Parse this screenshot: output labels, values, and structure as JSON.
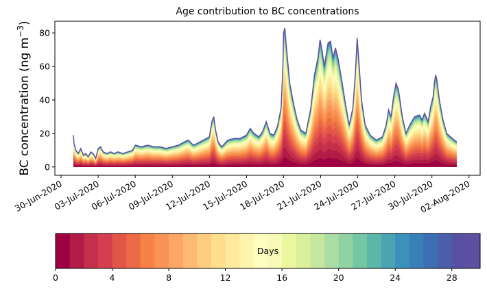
{
  "chart_data": {
    "type": "area",
    "title": "Age contribution to BC concentrations",
    "ylabel": "BC concentration (ng m⁻³)",
    "ylabel_text": "BC concentration (ng m",
    "ylabel_exp": "−3",
    "ylabel_close": ")",
    "xlim_days": [
      -0.5,
      33.9
    ],
    "ylim": [
      -5,
      87
    ],
    "yticks": [
      0,
      20,
      40,
      60,
      80
    ],
    "xticks": [
      {
        "day": 0,
        "label": "30-Jun-2020"
      },
      {
        "day": 3,
        "label": "03-Jul-2020"
      },
      {
        "day": 6,
        "label": "06-Jul-2020"
      },
      {
        "day": 9,
        "label": "09-Jul-2020"
      },
      {
        "day": 12,
        "label": "12-Jul-2020"
      },
      {
        "day": 15,
        "label": "15-Jul-2020"
      },
      {
        "day": 18,
        "label": "18-Jul-2020"
      },
      {
        "day": 21,
        "label": "21-Jul-2020"
      },
      {
        "day": 24,
        "label": "24-Jul-2020"
      },
      {
        "day": 27,
        "label": "27-Jul-2020"
      },
      {
        "day": 30,
        "label": "30-Jul-2020"
      },
      {
        "day": 33,
        "label": "02-Aug-2020"
      }
    ],
    "series_note": "Stacked contributions by particle age, 0–30 days (30 bands).",
    "total_profile": [
      [
        1.0,
        19
      ],
      [
        1.05,
        14
      ],
      [
        1.2,
        10
      ],
      [
        1.4,
        8
      ],
      [
        1.6,
        11
      ],
      [
        1.8,
        7
      ],
      [
        2.0,
        8
      ],
      [
        2.2,
        6
      ],
      [
        2.4,
        9
      ],
      [
        2.6,
        8
      ],
      [
        2.8,
        5
      ],
      [
        3.0,
        11
      ],
      [
        3.2,
        12
      ],
      [
        3.4,
        9
      ],
      [
        3.7,
        8
      ],
      [
        4.0,
        9
      ],
      [
        4.3,
        8
      ],
      [
        4.6,
        9
      ],
      [
        5.0,
        8
      ],
      [
        5.4,
        9
      ],
      [
        5.8,
        10
      ],
      [
        6.0,
        13
      ],
      [
        6.5,
        12
      ],
      [
        7.0,
        13
      ],
      [
        7.5,
        12
      ],
      [
        8.0,
        12
      ],
      [
        8.5,
        11
      ],
      [
        9.0,
        12
      ],
      [
        9.5,
        13
      ],
      [
        10.0,
        15
      ],
      [
        10.3,
        16
      ],
      [
        10.7,
        13
      ],
      [
        11.0,
        14
      ],
      [
        11.5,
        16
      ],
      [
        12.0,
        18
      ],
      [
        12.2,
        27
      ],
      [
        12.35,
        30
      ],
      [
        12.5,
        22
      ],
      [
        12.7,
        15
      ],
      [
        13.0,
        12
      ],
      [
        13.5,
        16
      ],
      [
        14.0,
        17
      ],
      [
        14.5,
        17
      ],
      [
        15.0,
        19
      ],
      [
        15.3,
        23
      ],
      [
        15.6,
        20
      ],
      [
        16.0,
        18
      ],
      [
        16.3,
        21
      ],
      [
        16.6,
        27
      ],
      [
        16.9,
        20
      ],
      [
        17.2,
        19
      ],
      [
        17.5,
        24
      ],
      [
        17.8,
        35
      ],
      [
        17.95,
        60
      ],
      [
        18.0,
        80
      ],
      [
        18.1,
        83
      ],
      [
        18.25,
        70
      ],
      [
        18.5,
        50
      ],
      [
        18.8,
        38
      ],
      [
        19.1,
        28
      ],
      [
        19.4,
        22
      ],
      [
        19.8,
        20
      ],
      [
        20.2,
        35
      ],
      [
        20.5,
        55
      ],
      [
        20.8,
        66
      ],
      [
        20.95,
        76
      ],
      [
        21.1,
        70
      ],
      [
        21.3,
        60
      ],
      [
        21.6,
        74
      ],
      [
        21.8,
        75
      ],
      [
        22.0,
        65
      ],
      [
        22.2,
        71
      ],
      [
        22.4,
        65
      ],
      [
        22.7,
        52
      ],
      [
        23.0,
        38
      ],
      [
        23.3,
        25
      ],
      [
        23.6,
        35
      ],
      [
        23.8,
        55
      ],
      [
        23.95,
        77
      ],
      [
        24.1,
        62
      ],
      [
        24.3,
        40
      ],
      [
        24.6,
        25
      ],
      [
        25.0,
        19
      ],
      [
        25.5,
        16
      ],
      [
        26.0,
        18
      ],
      [
        26.3,
        25
      ],
      [
        26.5,
        34
      ],
      [
        26.7,
        30
      ],
      [
        26.9,
        42
      ],
      [
        27.1,
        50
      ],
      [
        27.3,
        46
      ],
      [
        27.6,
        30
      ],
      [
        27.9,
        20
      ],
      [
        28.2,
        25
      ],
      [
        28.6,
        30
      ],
      [
        29.0,
        31
      ],
      [
        29.2,
        28
      ],
      [
        29.4,
        32
      ],
      [
        29.7,
        27
      ],
      [
        29.9,
        36
      ],
      [
        30.1,
        42
      ],
      [
        30.2,
        50
      ],
      [
        30.3,
        55
      ],
      [
        30.4,
        52
      ],
      [
        30.6,
        40
      ],
      [
        30.9,
        28
      ],
      [
        31.2,
        20
      ],
      [
        31.5,
        18
      ],
      [
        31.8,
        16
      ],
      [
        32.0,
        15
      ]
    ],
    "colorbar": {
      "label": "Days",
      "ticks": [
        0,
        4,
        8,
        12,
        16,
        20,
        24,
        28
      ],
      "range": [
        0,
        30
      ],
      "colors": [
        "#9e0142",
        "#b01c45",
        "#c4304b",
        "#d53e4f",
        "#e15649",
        "#ec6a45",
        "#f68246",
        "#f99456",
        "#fca663",
        "#fdbb72",
        "#fdcd80",
        "#fee08b",
        "#fee99c",
        "#fff4ad",
        "#fffcc0",
        "#f7fbb7",
        "#ebf7a0",
        "#d9ef9b",
        "#c5e89e",
        "#aadda4",
        "#91d2a4",
        "#74c7a5",
        "#5db7a9",
        "#4aa4b2",
        "#3a91b9",
        "#3780b8",
        "#3b6eb3",
        "#4a5eaa",
        "#5850a3",
        "#5e4fa2"
      ]
    }
  }
}
